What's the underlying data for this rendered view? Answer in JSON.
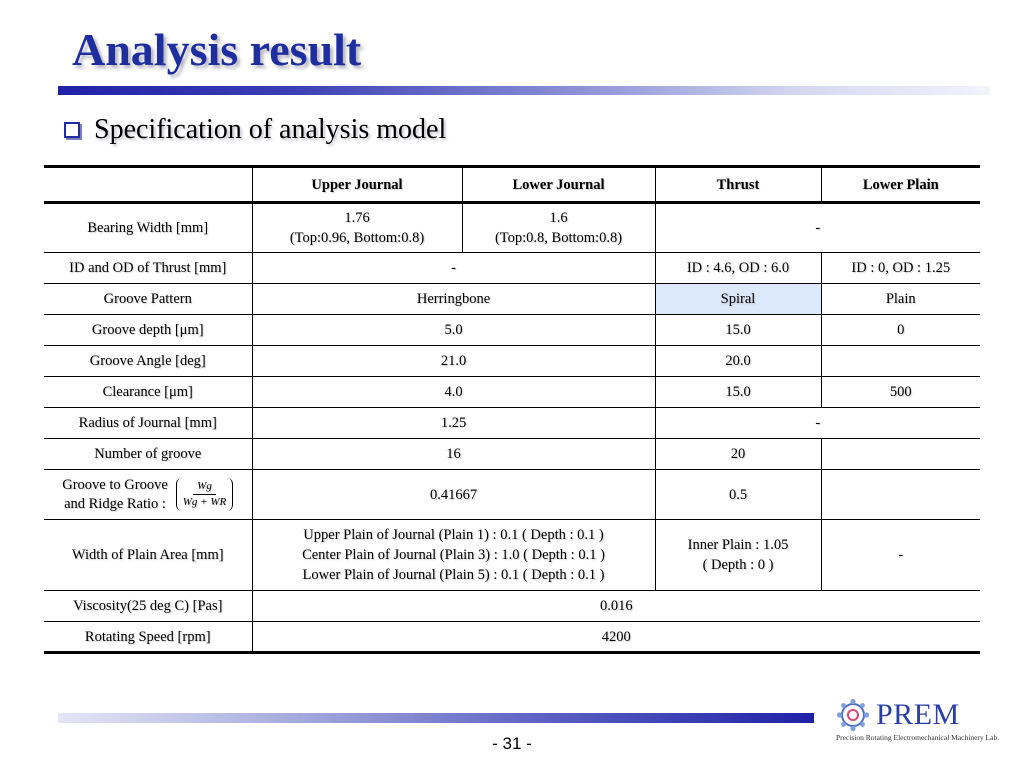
{
  "title": "Analysis result",
  "subtitle": "Specification of analysis model",
  "table": {
    "headers": [
      "",
      "Upper Journal",
      "Lower Journal",
      "Thrust",
      "Lower Plain"
    ],
    "bearing_width": {
      "label": "Bearing Width [mm]",
      "upper_value": "1.76",
      "upper_detail": "(Top:0.96, Bottom:0.8)",
      "lower_value": "1.6",
      "lower_detail": "(Top:0.8, Bottom:0.8)",
      "other": "-"
    },
    "id_od_thrust": {
      "label": "ID and OD of Thrust [mm]",
      "journal": "-",
      "thrust": "ID : 4.6,   OD : 6.0",
      "plain": "ID : 0,   OD : 1.25"
    },
    "groove_pattern": {
      "label": "Groove Pattern",
      "journal": "Herringbone",
      "thrust": "Spiral",
      "plain": "Plain"
    },
    "groove_depth": {
      "label": "Groove depth [μm]",
      "journal": "5.0",
      "thrust": "15.0",
      "plain": "0"
    },
    "groove_angle": {
      "label": "Groove Angle [deg]",
      "journal": "21.0",
      "thrust": "20.0",
      "plain": ""
    },
    "clearance": {
      "label": "Clearance [μm]",
      "journal": "4.0",
      "thrust": "15.0",
      "plain": "500"
    },
    "radius": {
      "label": "Radius of Journal [mm]",
      "journal": "1.25",
      "other": "-"
    },
    "number_of_groove": {
      "label": "Number of groove",
      "journal": "16",
      "thrust": "20",
      "plain": ""
    },
    "ratio": {
      "label_line1": "Groove to Groove",
      "label_line2": "and Ridge Ratio :",
      "frac_num": "Wg",
      "frac_den": "Wg + WR",
      "journal": "0.41667",
      "thrust": "0.5",
      "plain": ""
    },
    "plain_width": {
      "label": "Width of Plain Area [mm]",
      "journal_line1": "Upper Plain of Journal (Plain 1) : 0.1 ( Depth : 0.1 )",
      "journal_line2": "Center Plain of Journal (Plain 3) : 1.0 ( Depth : 0.1 )",
      "journal_line3": "Lower Plain of Journal (Plain 5) : 0.1 ( Depth : 0.1 )",
      "thrust_line1": "Inner Plain : 1.05",
      "thrust_line2": "( Depth : 0 )",
      "plain": "-"
    },
    "viscosity": {
      "label": "Viscosity(25 deg C) [Pas]",
      "value": "0.016"
    },
    "rotating_speed": {
      "label": "Rotating Speed [rpm]",
      "value": "4200"
    }
  },
  "page_number": "- 31 -",
  "logo": {
    "name": "PREM",
    "subtitle": "Precision Rotating Electromechanical Machinery Lab."
  },
  "colors": {
    "title": "#1f2e9e",
    "highlight": "#dce8fb",
    "logo": "#2a3fa6"
  }
}
